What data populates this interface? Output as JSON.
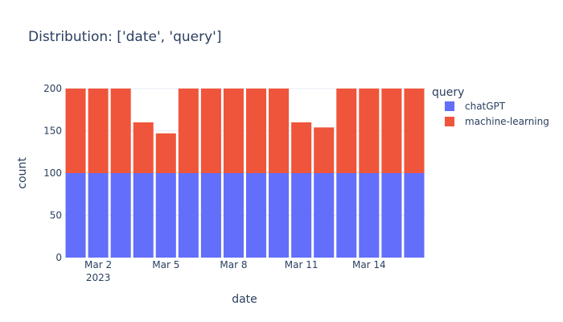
{
  "chart_data": {
    "type": "bar",
    "title": "Distribution: ['date', 'query']",
    "xlabel": "date",
    "ylabel": "count",
    "ylim": [
      0,
      200
    ],
    "yticks": [
      "0",
      "50",
      "100",
      "150",
      "200"
    ],
    "xticks": [
      {
        "date": "2023-03-02",
        "label": "Mar 2",
        "sublabel": "2023"
      },
      {
        "date": "2023-03-05",
        "label": "Mar 5",
        "sublabel": ""
      },
      {
        "date": "2023-03-08",
        "label": "Mar 8",
        "sublabel": ""
      },
      {
        "date": "2023-03-11",
        "label": "Mar 11",
        "sublabel": ""
      },
      {
        "date": "2023-03-14",
        "label": "Mar 14",
        "sublabel": ""
      }
    ],
    "categories": [
      "2023-03-01",
      "2023-03-02",
      "2023-03-03",
      "2023-03-04",
      "2023-03-05",
      "2023-03-06",
      "2023-03-07",
      "2023-03-08",
      "2023-03-09",
      "2023-03-10",
      "2023-03-11",
      "2023-03-12",
      "2023-03-13",
      "2023-03-14",
      "2023-03-15",
      "2023-03-16"
    ],
    "series": [
      {
        "name": "chatGPT",
        "color": "#636efa",
        "values": [
          100,
          100,
          100,
          100,
          100,
          100,
          100,
          100,
          100,
          100,
          100,
          100,
          100,
          100,
          100,
          100
        ]
      },
      {
        "name": "machine-learning",
        "color": "#ef553b",
        "values": [
          100,
          100,
          100,
          60,
          47,
          100,
          100,
          100,
          100,
          100,
          60,
          54,
          100,
          100,
          100,
          100
        ]
      }
    ],
    "legend": {
      "title": "query",
      "position": "top-right"
    },
    "barmode": "stack",
    "grid": true
  }
}
